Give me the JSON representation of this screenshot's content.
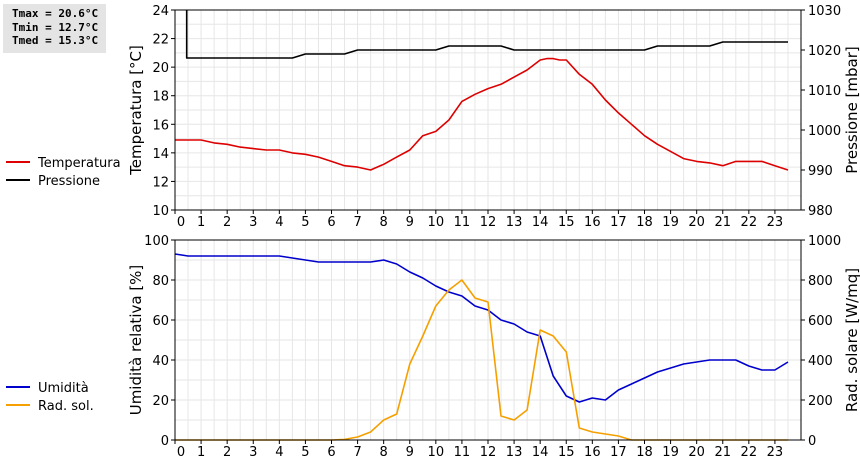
{
  "stats": {
    "tmax": "Tmax = 20.6°C",
    "tmin": "Tmin = 12.7°C",
    "tmed": "Tmed = 15.3°C"
  },
  "chart_data": [
    {
      "type": "line",
      "xlim": [
        0,
        24
      ],
      "x_ticks": [
        "0",
        "1",
        "2",
        "3",
        "4",
        "5",
        "6",
        "7",
        "8",
        "9",
        "10",
        "11",
        "12",
        "13",
        "14",
        "15",
        "16",
        "17",
        "18",
        "19",
        "20",
        "21",
        "22",
        "23"
      ],
      "ylabel_left": "Temperatura [°C]",
      "ylabel_right": "Pressione [mbar]",
      "ylim_left": [
        10,
        24
      ],
      "ylim_right": [
        980,
        1030
      ],
      "yticks_left": [
        10,
        12,
        14,
        16,
        18,
        20,
        22,
        24
      ],
      "yticks_right": [
        980,
        990,
        1000,
        1010,
        1020,
        1030
      ],
      "grid": true,
      "legend_position": "left-outside",
      "series": [
        {
          "name": "Temperatura",
          "axis": "left",
          "color": "#dd0000",
          "x": [
            0,
            0.5,
            1,
            1.5,
            2,
            2.5,
            3,
            3.5,
            4,
            4.5,
            5,
            5.5,
            6,
            6.5,
            7,
            7.5,
            8,
            8.5,
            9,
            9.5,
            10,
            10.5,
            11,
            11.5,
            12,
            12.5,
            13,
            13.5,
            14,
            14.25,
            14.5,
            14.75,
            15,
            15.5,
            16,
            16.5,
            17,
            17.5,
            18,
            18.5,
            19,
            19.5,
            20,
            20.5,
            21,
            21.5,
            22,
            22.5,
            23,
            23.5
          ],
          "y": [
            14.9,
            14.9,
            14.9,
            14.7,
            14.6,
            14.4,
            14.3,
            14.2,
            14.2,
            14.0,
            13.9,
            13.7,
            13.4,
            13.1,
            13.0,
            12.8,
            13.2,
            13.7,
            14.2,
            15.2,
            15.5,
            16.3,
            17.6,
            18.1,
            18.5,
            18.8,
            19.3,
            19.8,
            20.5,
            20.6,
            20.6,
            20.5,
            20.5,
            19.5,
            18.8,
            17.7,
            16.8,
            16.0,
            15.2,
            14.6,
            14.1,
            13.6,
            13.4,
            13.3,
            13.1,
            13.4,
            13.4,
            13.4,
            13.1,
            12.8
          ]
        },
        {
          "name": "Pressione",
          "axis": "right",
          "color": "#000000",
          "x": [
            0.45,
            0.45,
            0.5,
            1,
            2,
            3,
            4,
            4.5,
            5,
            5.5,
            6,
            6.5,
            7,
            8,
            9,
            10,
            10.5,
            11,
            12,
            12.5,
            13,
            14,
            15,
            16,
            17,
            18,
            18.5,
            19,
            20,
            20.5,
            21,
            22,
            23,
            23.5
          ],
          "y": [
            1030,
            1018,
            1018,
            1018,
            1018,
            1018,
            1018,
            1018,
            1019,
            1019,
            1019,
            1019,
            1020,
            1020,
            1020,
            1020,
            1021,
            1021,
            1021,
            1021,
            1020,
            1020,
            1020,
            1020,
            1020,
            1020,
            1021,
            1021,
            1021,
            1021,
            1022,
            1022,
            1022,
            1022
          ]
        }
      ]
    },
    {
      "type": "line",
      "xlim": [
        0,
        24
      ],
      "x_ticks": [
        "0",
        "1",
        "2",
        "3",
        "4",
        "5",
        "6",
        "7",
        "8",
        "9",
        "10",
        "11",
        "12",
        "13",
        "14",
        "15",
        "16",
        "17",
        "18",
        "19",
        "20",
        "21",
        "22",
        "23"
      ],
      "ylabel_left": "Umidità relativa [%]",
      "ylabel_right": "Rad. solare [W/mq]",
      "ylim_left": [
        0,
        100
      ],
      "ylim_right": [
        0,
        1000
      ],
      "yticks_left": [
        0,
        20,
        40,
        60,
        80,
        100
      ],
      "yticks_right": [
        0,
        200,
        400,
        600,
        800,
        1000
      ],
      "grid": true,
      "legend_position": "left-outside",
      "series": [
        {
          "name": "Umidità",
          "axis": "left",
          "color": "#0000cc",
          "x": [
            0,
            0.5,
            1,
            2,
            3,
            4,
            4.5,
            5,
            5.5,
            6,
            6.5,
            7,
            7.5,
            8,
            8.5,
            9,
            9.5,
            10,
            10.5,
            11,
            11.5,
            12,
            12.5,
            13,
            13.5,
            14,
            14.5,
            15,
            15.5,
            16,
            16.5,
            17,
            17.5,
            18,
            18.5,
            19,
            19.5,
            20,
            20.5,
            21,
            21.5,
            22,
            22.5,
            23,
            23.5
          ],
          "y": [
            93,
            92,
            92,
            92,
            92,
            92,
            91,
            90,
            89,
            89,
            89,
            89,
            89,
            90,
            88,
            84,
            81,
            77,
            74,
            72,
            67,
            65,
            60,
            58,
            54,
            52,
            32,
            22,
            19,
            21,
            20,
            25,
            28,
            31,
            34,
            36,
            38,
            39,
            40,
            40,
            40,
            37,
            35,
            35,
            39
          ]
        },
        {
          "name": "Rad. sol.",
          "axis": "right",
          "color": "#f5a000",
          "x": [
            0,
            6,
            6.5,
            7,
            7.5,
            8,
            8.5,
            9,
            9.5,
            10,
            10.5,
            11,
            11.5,
            12,
            12.5,
            13,
            13.5,
            14,
            14.5,
            15,
            15.5,
            16,
            16.5,
            17,
            17.5,
            18,
            20,
            22,
            23.5
          ],
          "y": [
            0,
            0,
            3,
            15,
            40,
            100,
            130,
            380,
            520,
            670,
            750,
            800,
            710,
            690,
            120,
            100,
            150,
            550,
            520,
            440,
            60,
            40,
            30,
            20,
            0,
            0,
            0,
            0,
            0
          ]
        }
      ]
    }
  ]
}
